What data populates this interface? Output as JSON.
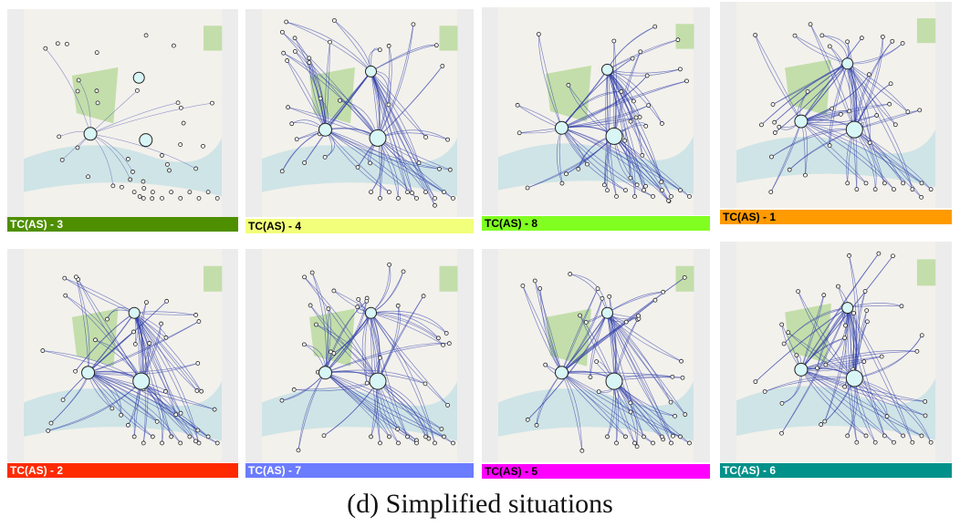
{
  "panels": [
    {
      "label": "TC(AS) - 3",
      "label_color": "#4e8f00",
      "label_text_color": "#ffffff"
    },
    {
      "label": "TC(AS) - 4",
      "label_color": "#f2ff7a",
      "label_text_color": "#000000"
    },
    {
      "label": "TC(AS) - 8",
      "label_color": "#80ff20",
      "label_text_color": "#000000"
    },
    {
      "label": "TC(AS) - 1",
      "label_color": "#ff9a00",
      "label_text_color": "#000000"
    },
    {
      "label": "TC(AS) - 2",
      "label_color": "#ff2a00",
      "label_text_color": "#ffffff"
    },
    {
      "label": "TC(AS) - 7",
      "label_color": "#6b7cff",
      "label_text_color": "#ffffff"
    },
    {
      "label": "TC(AS) - 5",
      "label_color": "#ff00ff",
      "label_text_color": "#000000"
    },
    {
      "label": "TC(AS) - 6",
      "label_color": "#00918a",
      "label_text_color": "#ffffff"
    }
  ],
  "caption": "(d)  Simplified situations",
  "colors": {
    "edge": "#2b3aa8",
    "node_fill": "#d8f6f6",
    "park": "#b7d99a",
    "water": "#cfe4e6"
  }
}
